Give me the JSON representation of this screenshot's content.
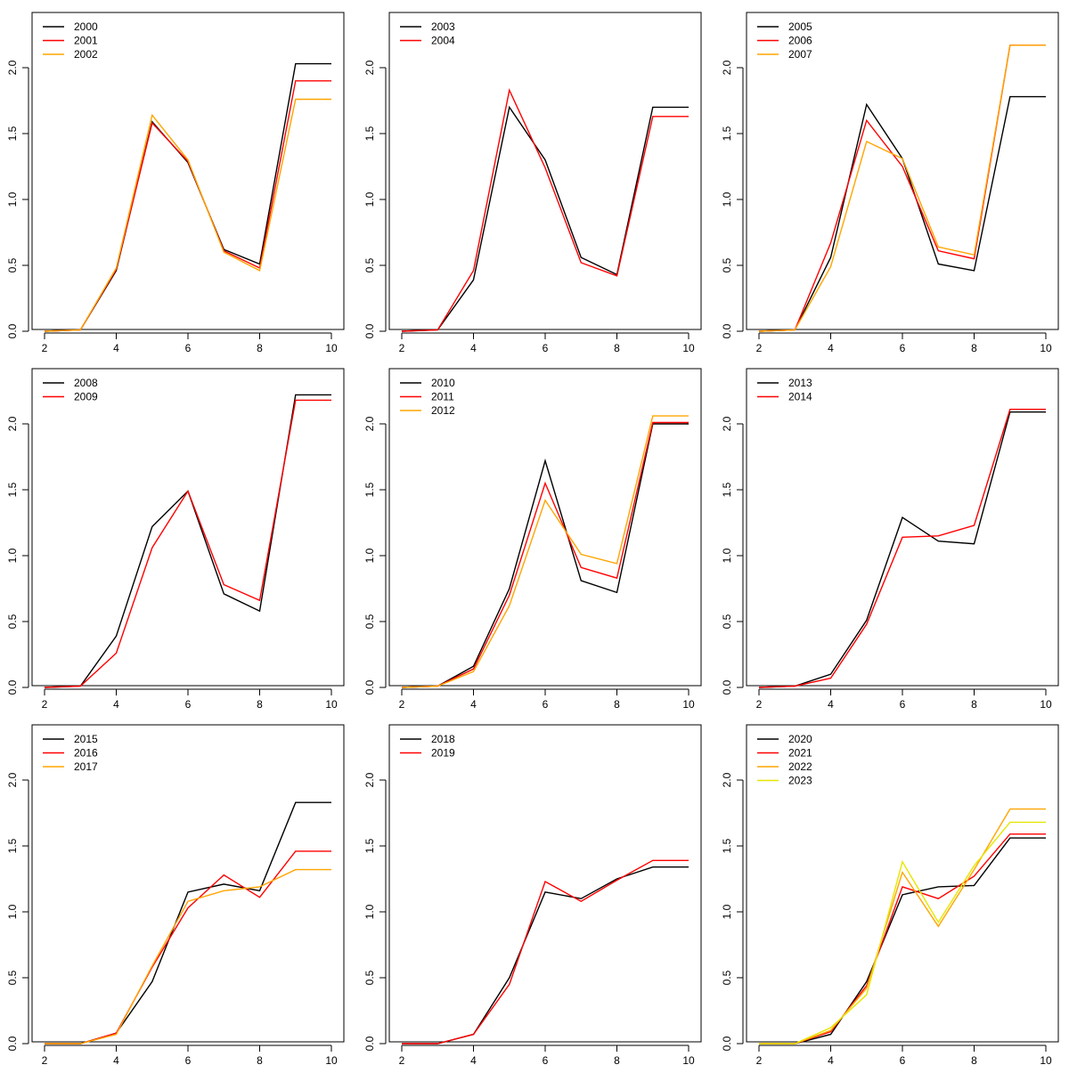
{
  "chart_data": [
    {
      "type": "line",
      "x": [
        2,
        3,
        4,
        5,
        6,
        7,
        8,
        9,
        10
      ],
      "xlim": [
        2,
        10
      ],
      "ylim": [
        0,
        2.2
      ],
      "xticks": [
        "2",
        "4",
        "6",
        "8",
        "10"
      ],
      "yticks": [
        "0.0",
        "0.5",
        "1.0",
        "1.5",
        "2.0"
      ],
      "legend_position": "top-left",
      "series": [
        {
          "name": "2000",
          "color": "#000000",
          "values": [
            0.0,
            0.01,
            0.46,
            1.59,
            1.28,
            0.62,
            0.51,
            2.03,
            2.03
          ]
        },
        {
          "name": "2001",
          "color": "#ff0000",
          "values": [
            0.0,
            0.01,
            0.47,
            1.58,
            1.29,
            0.61,
            0.48,
            1.9,
            1.9
          ]
        },
        {
          "name": "2002",
          "color": "#ffa500",
          "values": [
            0.0,
            0.01,
            0.48,
            1.64,
            1.3,
            0.6,
            0.46,
            1.76,
            1.76
          ]
        }
      ]
    },
    {
      "type": "line",
      "x": [
        2,
        3,
        4,
        5,
        6,
        7,
        8,
        9,
        10
      ],
      "xlim": [
        2,
        10
      ],
      "ylim": [
        0,
        2.2
      ],
      "xticks": [
        "2",
        "4",
        "6",
        "8",
        "10"
      ],
      "yticks": [
        "0.0",
        "0.5",
        "1.0",
        "1.5",
        "2.0"
      ],
      "legend_position": "top-left",
      "series": [
        {
          "name": "2003",
          "color": "#000000",
          "values": [
            0.0,
            0.01,
            0.39,
            1.7,
            1.3,
            0.56,
            0.43,
            1.7,
            1.7
          ]
        },
        {
          "name": "2004",
          "color": "#ff0000",
          "values": [
            0.0,
            0.01,
            0.46,
            1.83,
            1.24,
            0.52,
            0.42,
            1.63,
            1.63
          ]
        }
      ]
    },
    {
      "type": "line",
      "x": [
        2,
        3,
        4,
        5,
        6,
        7,
        8,
        9,
        10
      ],
      "xlim": [
        2,
        10
      ],
      "ylim": [
        0,
        2.2
      ],
      "xticks": [
        "2",
        "4",
        "6",
        "8",
        "10"
      ],
      "yticks": [
        "0.0",
        "0.5",
        "1.0",
        "1.5",
        "2.0"
      ],
      "legend_position": "top-left",
      "series": [
        {
          "name": "2005",
          "color": "#000000",
          "values": [
            0.0,
            0.01,
            0.56,
            1.72,
            1.31,
            0.51,
            0.46,
            1.78,
            1.78
          ]
        },
        {
          "name": "2006",
          "color": "#ff0000",
          "values": [
            0.0,
            0.01,
            0.67,
            1.6,
            1.25,
            0.61,
            0.55,
            2.17,
            2.17
          ]
        },
        {
          "name": "2007",
          "color": "#ffa500",
          "values": [
            0.0,
            0.01,
            0.49,
            1.44,
            1.31,
            0.64,
            0.58,
            2.17,
            2.17
          ]
        }
      ]
    },
    {
      "type": "line",
      "x": [
        2,
        3,
        4,
        5,
        6,
        7,
        8,
        9,
        10
      ],
      "xlim": [
        2,
        10
      ],
      "ylim": [
        0,
        2.2
      ],
      "xticks": [
        "2",
        "4",
        "6",
        "8",
        "10"
      ],
      "yticks": [
        "0.0",
        "0.5",
        "1.0",
        "1.5",
        "2.0"
      ],
      "legend_position": "top-left",
      "series": [
        {
          "name": "2008",
          "color": "#000000",
          "values": [
            0.0,
            0.01,
            0.39,
            1.22,
            1.49,
            0.71,
            0.58,
            2.22,
            2.22
          ]
        },
        {
          "name": "2009",
          "color": "#ff0000",
          "values": [
            0.0,
            0.01,
            0.26,
            1.06,
            1.49,
            0.78,
            0.66,
            2.18,
            2.18
          ]
        }
      ]
    },
    {
      "type": "line",
      "x": [
        2,
        3,
        4,
        5,
        6,
        7,
        8,
        9,
        10
      ],
      "xlim": [
        2,
        10
      ],
      "ylim": [
        0,
        2.2
      ],
      "xticks": [
        "2",
        "4",
        "6",
        "8",
        "10"
      ],
      "yticks": [
        "0.0",
        "0.5",
        "1.0",
        "1.5",
        "2.0"
      ],
      "legend_position": "top-left",
      "series": [
        {
          "name": "2010",
          "color": "#000000",
          "values": [
            0.0,
            0.01,
            0.16,
            0.75,
            1.72,
            0.81,
            0.72,
            2.0,
            2.0
          ]
        },
        {
          "name": "2011",
          "color": "#ff0000",
          "values": [
            0.0,
            0.01,
            0.14,
            0.7,
            1.55,
            0.91,
            0.83,
            2.01,
            2.01
          ]
        },
        {
          "name": "2012",
          "color": "#ffa500",
          "values": [
            0.0,
            0.01,
            0.12,
            0.62,
            1.42,
            1.01,
            0.94,
            2.06,
            2.06
          ]
        }
      ]
    },
    {
      "type": "line",
      "x": [
        2,
        3,
        4,
        5,
        6,
        7,
        8,
        9,
        10
      ],
      "xlim": [
        2,
        10
      ],
      "ylim": [
        0,
        2.2
      ],
      "xticks": [
        "2",
        "4",
        "6",
        "8",
        "10"
      ],
      "yticks": [
        "0.0",
        "0.5",
        "1.0",
        "1.5",
        "2.0"
      ],
      "legend_position": "top-left",
      "series": [
        {
          "name": "2013",
          "color": "#000000",
          "values": [
            0.0,
            0.01,
            0.1,
            0.51,
            1.29,
            1.11,
            1.09,
            2.09,
            2.09
          ]
        },
        {
          "name": "2014",
          "color": "#ff0000",
          "values": [
            0.0,
            0.01,
            0.07,
            0.48,
            1.14,
            1.15,
            1.23,
            2.11,
            2.11
          ]
        }
      ]
    },
    {
      "type": "line",
      "x": [
        2,
        3,
        4,
        5,
        6,
        7,
        8,
        9,
        10
      ],
      "xlim": [
        2,
        10
      ],
      "ylim": [
        0,
        2.2
      ],
      "xticks": [
        "2",
        "4",
        "6",
        "8",
        "10"
      ],
      "yticks": [
        "0.0",
        "0.5",
        "1.0",
        "1.5",
        "2.0"
      ],
      "legend_position": "top-left",
      "series": [
        {
          "name": "2015",
          "color": "#000000",
          "values": [
            0.0,
            0.0,
            0.08,
            0.47,
            1.15,
            1.21,
            1.16,
            1.83,
            1.83
          ]
        },
        {
          "name": "2016",
          "color": "#ff0000",
          "values": [
            0.0,
            0.0,
            0.08,
            0.58,
            1.03,
            1.28,
            1.11,
            1.46,
            1.46
          ]
        },
        {
          "name": "2017",
          "color": "#ffa500",
          "values": [
            0.0,
            0.0,
            0.07,
            0.59,
            1.08,
            1.16,
            1.19,
            1.32,
            1.32
          ]
        }
      ]
    },
    {
      "type": "line",
      "x": [
        2,
        3,
        4,
        5,
        6,
        7,
        8,
        9,
        10
      ],
      "xlim": [
        2,
        10
      ],
      "ylim": [
        0,
        2.2
      ],
      "xticks": [
        "2",
        "4",
        "6",
        "8",
        "10"
      ],
      "yticks": [
        "0.0",
        "0.5",
        "1.0",
        "1.5",
        "2.0"
      ],
      "legend_position": "top-left",
      "series": [
        {
          "name": "2018",
          "color": "#000000",
          "values": [
            0.0,
            0.0,
            0.07,
            0.5,
            1.15,
            1.1,
            1.25,
            1.34,
            1.34
          ]
        },
        {
          "name": "2019",
          "color": "#ff0000",
          "values": [
            0.0,
            0.0,
            0.07,
            0.45,
            1.23,
            1.08,
            1.24,
            1.39,
            1.39
          ]
        }
      ]
    },
    {
      "type": "line",
      "x": [
        2,
        3,
        4,
        5,
        6,
        7,
        8,
        9,
        10
      ],
      "xlim": [
        2,
        10
      ],
      "ylim": [
        0,
        2.2
      ],
      "xticks": [
        "2",
        "4",
        "6",
        "8",
        "10"
      ],
      "yticks": [
        "0.0",
        "0.5",
        "1.0",
        "1.5",
        "2.0"
      ],
      "legend_position": "top-left",
      "series": [
        {
          "name": "2020",
          "color": "#000000",
          "values": [
            0.0,
            0.0,
            0.07,
            0.47,
            1.13,
            1.19,
            1.2,
            1.56,
            1.56
          ]
        },
        {
          "name": "2021",
          "color": "#ff0000",
          "values": [
            0.0,
            0.0,
            0.09,
            0.44,
            1.19,
            1.1,
            1.27,
            1.59,
            1.59
          ]
        },
        {
          "name": "2022",
          "color": "#ffa500",
          "values": [
            0.0,
            0.0,
            0.1,
            0.42,
            1.3,
            0.89,
            1.32,
            1.78,
            1.78
          ]
        },
        {
          "name": "2023",
          "color": "#e6e600",
          "values": [
            0.0,
            0.0,
            0.12,
            0.37,
            1.38,
            0.92,
            1.35,
            1.68,
            1.68
          ]
        }
      ]
    }
  ]
}
